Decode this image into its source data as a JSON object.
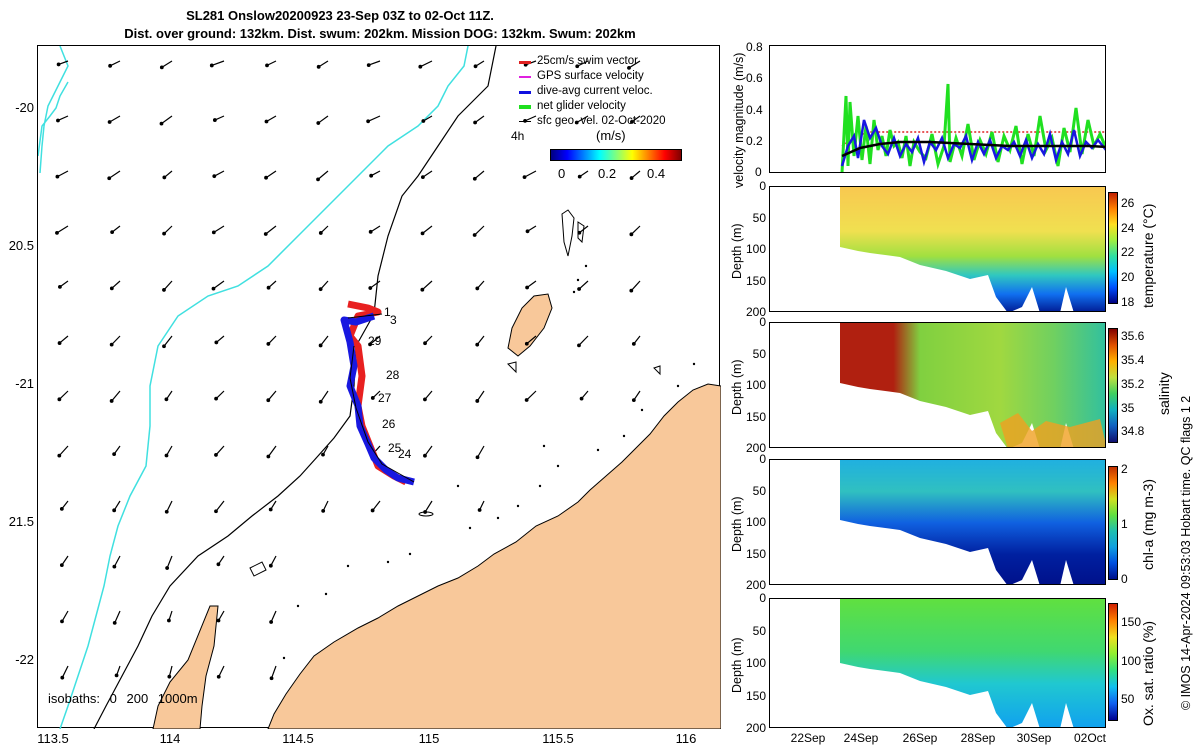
{
  "header": {
    "title": "SL281 Onslow20200923 23-Sep 03Z to 02-Oct 11Z.",
    "subtitle": "Dist. over ground: 132km. Dist. swum: 202km. Mission DOG: 132km. Swum: 202km"
  },
  "map": {
    "lat_ticks": [
      "-20",
      "20.5",
      "-21",
      "21.5",
      "-22"
    ],
    "lon_ticks": [
      "113.5",
      "114",
      "114.5",
      "115",
      "115.5",
      "116"
    ],
    "legend": [
      {
        "label": "25cm/s swim vector",
        "color": "#e02020"
      },
      {
        "label": "GPS surface velocity",
        "color": "#e020e0"
      },
      {
        "label": "dive-avg current veloc.",
        "color": "#1010e0"
      },
      {
        "label": "net glider velocity",
        "color": "#20e020"
      },
      {
        "label": "sfc geo. vel. 02-Oct-2020",
        "color": "#000000"
      }
    ],
    "legend_scale": "4h",
    "colorbar_title": "(m/s)",
    "colorbar_ticks": [
      "0",
      "0.2",
      "0.4"
    ],
    "isobaths_label": "isobaths: 0   200  1000m",
    "day_labels": [
      "1",
      "3",
      "29",
      "28",
      "27",
      "26",
      "25",
      "24"
    ],
    "colors": {
      "land": "#f8c89a",
      "isobath_200": "#40e0e0",
      "track_red": "#e82020",
      "track_blue": "#1818e0"
    }
  },
  "panels": {
    "velocity": {
      "ylabel": "velocity magnitude (m/s)",
      "yticks": [
        "0.8",
        "0.6",
        "0.4",
        "0.2",
        "0"
      ]
    },
    "temperature": {
      "ylabel": "Depth (m)",
      "yticks": [
        "0",
        "50",
        "100",
        "150",
        "200"
      ],
      "cbar_label": "temperature (°C)",
      "cbar_ticks": [
        "26",
        "24",
        "22",
        "20",
        "18"
      ]
    },
    "salinity": {
      "ylabel": "Depth (m)",
      "yticks": [
        "0",
        "50",
        "100",
        "150",
        "200"
      ],
      "cbar_label": "salinity",
      "cbar_ticks": [
        "35.6",
        "35.4",
        "35.2",
        "35",
        "34.8"
      ]
    },
    "chla": {
      "ylabel": "Depth (m)",
      "yticks": [
        "0",
        "50",
        "100",
        "150",
        "200"
      ],
      "cbar_label": "chl-a (mg m-3)",
      "cbar_ticks": [
        "2",
        "1",
        "0"
      ]
    },
    "oxygen": {
      "ylabel": "Depth (m)",
      "yticks": [
        "0",
        "50",
        "100",
        "150",
        "200"
      ],
      "cbar_label": "Ox. sat. ratio (%)",
      "cbar_ticks": [
        "150",
        "100",
        "50"
      ]
    },
    "date_ticks": [
      "22Sep",
      "24Sep",
      "26Sep",
      "28Sep",
      "30Sep",
      "02Oct"
    ]
  },
  "credit": "© IMOS 14-Apr-2024 09:53:03 Hobart time. QC flags 1  2"
}
